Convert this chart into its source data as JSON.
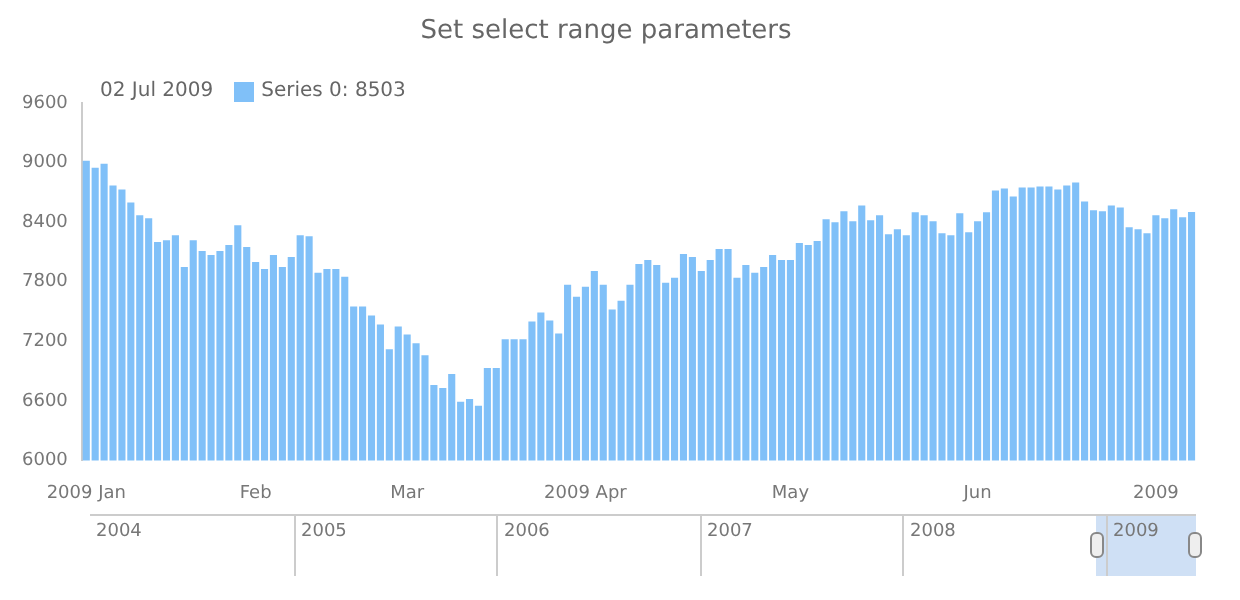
{
  "chart_data": {
    "type": "bar",
    "title": "Set select range parameters",
    "categories": [
      "2009 Jan",
      null,
      null,
      null,
      null,
      null,
      null,
      null,
      null,
      null,
      null,
      null,
      null,
      null,
      null,
      null,
      null,
      null,
      null,
      "Feb",
      null,
      null,
      null,
      null,
      null,
      null,
      null,
      null,
      null,
      null,
      null,
      null,
      null,
      null,
      null,
      null,
      "Mar",
      null,
      null,
      null,
      null,
      null,
      null,
      null,
      null,
      null,
      null,
      null,
      null,
      null,
      null,
      null,
      null,
      null,
      null,
      null,
      "2009 Apr",
      null,
      null,
      null,
      null,
      null,
      null,
      null,
      null,
      null,
      null,
      null,
      null,
      null,
      null,
      null,
      null,
      null,
      null,
      null,
      null,
      null,
      null,
      "May",
      null,
      null,
      null,
      null,
      null,
      null,
      null,
      null,
      null,
      null,
      null,
      null,
      null,
      null,
      null,
      null,
      null,
      null,
      null,
      null,
      "Jun",
      null,
      null,
      null,
      null,
      null,
      null,
      null,
      null,
      null,
      null,
      null,
      null,
      null,
      null,
      null,
      null,
      null,
      null,
      null,
      "2009",
      null,
      null,
      null,
      null
    ],
    "series": [
      {
        "name": "Series 0: 8503",
        "color": "#80c0f8",
        "values": [
          9020,
          8950,
          8990,
          8770,
          8730,
          8600,
          8470,
          8440,
          8200,
          8220,
          8270,
          7950,
          8220,
          8110,
          8070,
          8110,
          8170,
          8370,
          8150,
          8000,
          7930,
          8070,
          7950,
          8050,
          8270,
          8260,
          7890,
          7930,
          7930,
          7850,
          7550,
          7550,
          7460,
          7370,
          7120,
          7350,
          7270,
          7180,
          7060,
          6760,
          6730,
          6870,
          6590,
          6620,
          6550,
          6930,
          6930,
          7220,
          7220,
          7220,
          7400,
          7490,
          7410,
          7280,
          7770,
          7650,
          7750,
          7910,
          7770,
          7520,
          7610,
          7770,
          7980,
          8020,
          7970,
          7790,
          7840,
          8080,
          8050,
          7910,
          8020,
          8130,
          8130,
          7840,
          7970,
          7890,
          7950,
          8070,
          8020,
          8020,
          8190,
          8170,
          8210,
          8430,
          8400,
          8510,
          8410,
          8570,
          8420,
          8470,
          8280,
          8330,
          8270,
          8500,
          8470,
          8410,
          8290,
          8270,
          8490,
          8300,
          8410,
          8500,
          8720,
          8740,
          8660,
          8750,
          8750,
          8760,
          8760,
          8730,
          8770,
          8800,
          8610,
          8520,
          8510,
          8570,
          8550,
          8350,
          8330,
          8290,
          8470,
          8440,
          8530,
          8450,
          8503
        ]
      }
    ],
    "ylim": [
      6000,
      9600
    ],
    "yticks": [
      6000,
      6600,
      7200,
      7800,
      8400,
      9000,
      9600
    ],
    "grid": false,
    "legend": "top left",
    "annotations": [
      "02 Jul 2009",
      "2004",
      "2005",
      "2006",
      "2007",
      "2008",
      "2009"
    ]
  }
}
